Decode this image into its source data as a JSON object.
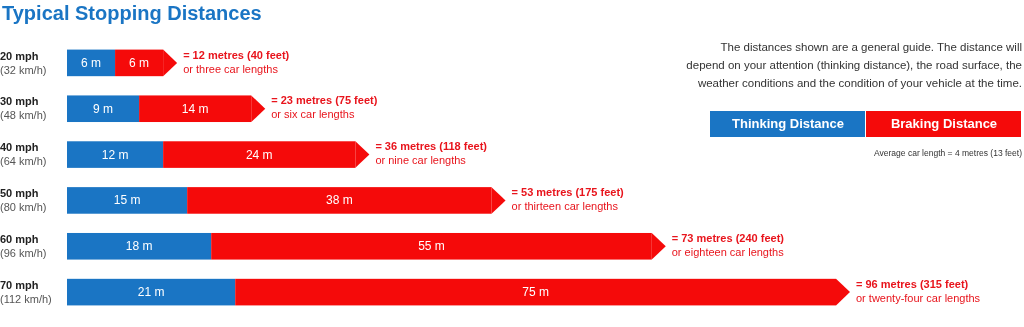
{
  "chart_data": {
    "type": "bar",
    "orientation": "horizontal",
    "stacked": true,
    "title": "Typical Stopping Distances",
    "categories": [
      "20 mph\n(32 km/h)",
      "30 mph\n(48 km/h)",
      "40 mph\n(64 km/h)",
      "50 mph\n(80 km/h)",
      "60 mph\n(96 km/h)",
      "70 mph\n(112 km/h)"
    ],
    "series": [
      {
        "name": "Thinking Distance",
        "color": "#1a75c4",
        "values": [
          6,
          9,
          12,
          15,
          18,
          21
        ],
        "value_labels": [
          "6 m",
          "9 m",
          "12 m",
          "15 m",
          "18 m",
          "21 m"
        ]
      },
      {
        "name": "Braking Distance",
        "color": "#f50a0a",
        "values": [
          6,
          14,
          24,
          38,
          55,
          75
        ],
        "value_labels": [
          "6 m",
          "14 m",
          "24 m",
          "38 m",
          "55 m",
          "75 m"
        ]
      }
    ],
    "totals": [
      "= 12 metres (40 feet)\nor three car lengths",
      "= 23 metres (75 feet)\nor six car lengths",
      "= 36 metres (118 feet)\nor nine car lengths",
      "= 53 metres (175 feet)\nor thirteen car lengths",
      "= 73 metres (240 feet)\nor eighteen car lengths",
      "= 96 metres (315 feet)\nor twenty-four car lengths"
    ],
    "legend": "top right",
    "annotations": [
      "The distances shown are a general guide. The distance will\ndepend on your attention (thinking distance), the road surface, the\nweather conditions and the condition of your vehicle at the time.",
      "Average car length = 4 metres (13 feet)"
    ]
  }
}
